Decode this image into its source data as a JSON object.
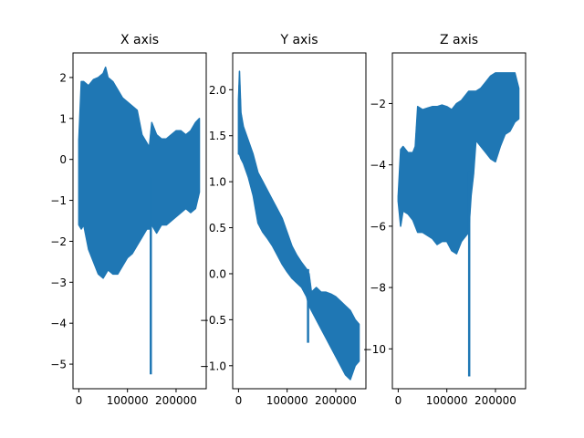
{
  "chart_data": [
    {
      "type": "line",
      "title": "X axis",
      "xlabel": "",
      "ylabel": "",
      "xlim": [
        -12000,
        262000
      ],
      "ylim": [
        -5.6,
        2.6
      ],
      "xticks": [
        0,
        100000,
        200000
      ],
      "xtick_labels": [
        "0",
        "100000",
        "200000"
      ],
      "yticks": [
        -5,
        -4,
        -3,
        -2,
        -1,
        0,
        1,
        2
      ],
      "ytick_labels": [
        "−5",
        "−4",
        "−3",
        "−2",
        "−1",
        "0",
        "1",
        "2"
      ],
      "color": "#1f77b4",
      "grid": false,
      "series": [
        {
          "x": [
            0,
            5000,
            10000,
            20000,
            30000,
            40000,
            50000,
            55000,
            60000,
            70000,
            80000,
            90000,
            100000,
            110000,
            120000,
            130000,
            140000,
            145000,
            150000,
            160000,
            170000,
            180000,
            190000,
            200000,
            210000,
            220000,
            230000,
            240000,
            248000
          ],
          "upper": [
            0.5,
            1.9,
            1.9,
            1.8,
            1.95,
            2.0,
            2.1,
            2.25,
            2.0,
            1.9,
            1.7,
            1.5,
            1.4,
            1.3,
            1.2,
            0.6,
            0.4,
            0.3,
            0.9,
            0.6,
            0.5,
            0.5,
            0.6,
            0.7,
            0.7,
            0.6,
            0.7,
            0.9,
            1.0
          ],
          "lower": [
            -1.6,
            -1.7,
            -1.6,
            -2.2,
            -2.5,
            -2.8,
            -2.9,
            -2.8,
            -2.7,
            -2.8,
            -2.8,
            -2.6,
            -2.4,
            -2.3,
            -2.1,
            -1.9,
            -1.7,
            -1.7,
            -1.6,
            -1.8,
            -1.6,
            -1.6,
            -1.5,
            -1.4,
            -1.3,
            -1.2,
            -1.3,
            -1.2,
            -0.8
          ],
          "spike": {
            "x": 148000,
            "y": -5.25
          }
        }
      ]
    },
    {
      "type": "line",
      "title": "Y axis",
      "xlabel": "",
      "ylabel": "",
      "xlim": [
        -12000,
        262000
      ],
      "ylim": [
        -1.25,
        2.4
      ],
      "xticks": [
        0,
        100000,
        200000
      ],
      "xtick_labels": [
        "0",
        "100000",
        "200000"
      ],
      "yticks": [
        -1.0,
        -0.5,
        0.0,
        0.5,
        1.0,
        1.5,
        2.0
      ],
      "ytick_labels": [
        "−1.0",
        "−0.5",
        "0.0",
        "0.5",
        "1.0",
        "1.5",
        "2.0"
      ],
      "color": "#1f77b4",
      "grid": false,
      "series": [
        {
          "x": [
            0,
            2000,
            5000,
            10000,
            20000,
            30000,
            40000,
            50000,
            60000,
            70000,
            80000,
            90000,
            100000,
            110000,
            120000,
            130000,
            140000,
            145000,
            150000,
            160000,
            170000,
            180000,
            190000,
            200000,
            210000,
            220000,
            230000,
            240000,
            248000
          ],
          "upper": [
            1.9,
            2.2,
            1.75,
            1.6,
            1.45,
            1.3,
            1.1,
            1.0,
            0.9,
            0.8,
            0.7,
            0.6,
            0.45,
            0.3,
            0.2,
            0.12,
            0.05,
            0.0,
            -0.2,
            -0.15,
            -0.2,
            -0.2,
            -0.22,
            -0.25,
            -0.3,
            -0.35,
            -0.4,
            -0.5,
            -0.55
          ],
          "lower": [
            1.3,
            1.3,
            1.25,
            1.2,
            1.05,
            0.85,
            0.55,
            0.45,
            0.38,
            0.3,
            0.2,
            0.1,
            0.02,
            -0.05,
            -0.1,
            -0.15,
            -0.25,
            -0.35,
            -0.4,
            -0.5,
            -0.6,
            -0.7,
            -0.8,
            -0.9,
            -1.0,
            -1.1,
            -1.15,
            -1.0,
            -0.95
          ],
          "spike": {
            "x": 143000,
            "y": -0.75
          }
        }
      ]
    },
    {
      "type": "line",
      "title": "Z axis",
      "xlabel": "",
      "ylabel": "",
      "xlim": [
        -12000,
        262000
      ],
      "ylim": [
        -11.3,
        -0.35
      ],
      "xticks": [
        0,
        100000,
        200000
      ],
      "xtick_labels": [
        "0",
        "100000",
        "200000"
      ],
      "yticks": [
        -10,
        -8,
        -6,
        -4,
        -2
      ],
      "ytick_labels": [
        "−10",
        "−8",
        "−6",
        "−4",
        "−2"
      ],
      "color": "#1f77b4",
      "grid": false,
      "series": [
        {
          "x": [
            0,
            5000,
            10000,
            20000,
            30000,
            35000,
            40000,
            50000,
            60000,
            70000,
            80000,
            90000,
            100000,
            110000,
            120000,
            130000,
            140000,
            145000,
            150000,
            155000,
            160000,
            170000,
            180000,
            190000,
            200000,
            210000,
            220000,
            230000,
            240000,
            248000
          ],
          "upper": [
            -5.0,
            -3.5,
            -3.4,
            -3.6,
            -3.6,
            -3.4,
            -2.1,
            -2.2,
            -2.15,
            -2.1,
            -2.1,
            -2.05,
            -2.1,
            -2.2,
            -2.0,
            -1.9,
            -1.7,
            -1.6,
            -1.6,
            -1.6,
            -1.6,
            -1.5,
            -1.3,
            -1.1,
            -1.0,
            -1.0,
            -1.0,
            -1.0,
            -1.0,
            -1.5
          ],
          "lower": [
            -5.2,
            -6.0,
            -5.5,
            -5.6,
            -5.8,
            -6.0,
            -6.2,
            -6.2,
            -6.3,
            -6.4,
            -6.6,
            -6.5,
            -6.5,
            -6.8,
            -6.9,
            -6.5,
            -6.3,
            -6.2,
            -5.0,
            -4.3,
            -3.2,
            -3.4,
            -3.6,
            -3.8,
            -3.9,
            -3.4,
            -3.0,
            -2.9,
            -2.6,
            -2.5
          ],
          "spike": {
            "x": 146000,
            "y": -10.9
          }
        }
      ]
    }
  ]
}
